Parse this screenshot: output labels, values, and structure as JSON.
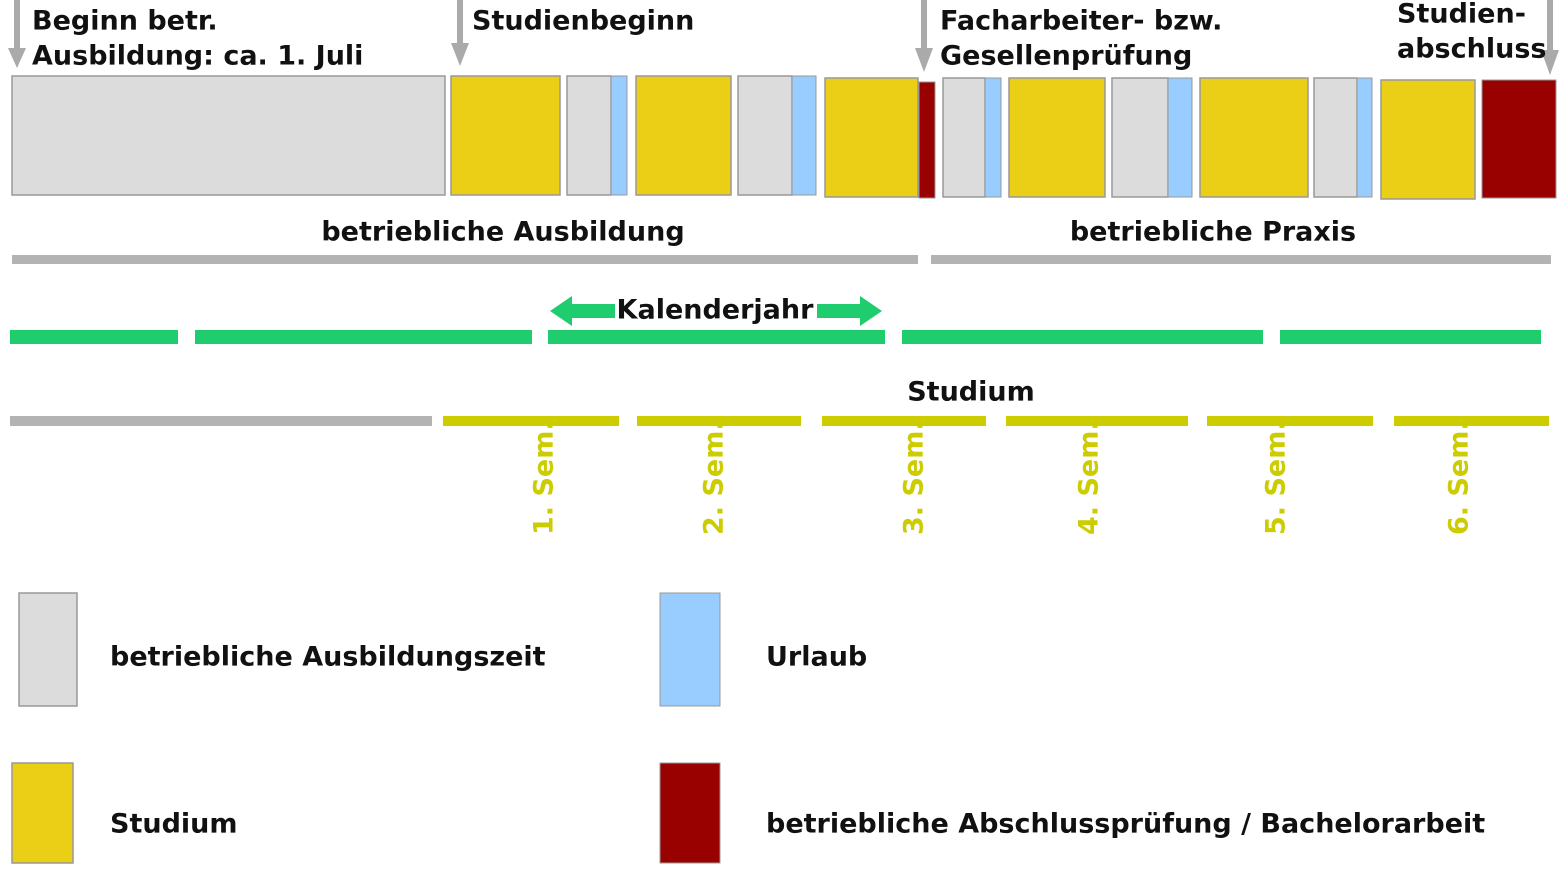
{
  "milestones": [
    {
      "lines": [
        "Beginn betr.",
        "Ausbildung: ca. 1. Juli"
      ]
    },
    {
      "lines": [
        "Studienbeginn"
      ]
    },
    {
      "lines": [
        "Facharbeiter- bzw.",
        "Gesellenprüfung"
      ]
    },
    {
      "lines": [
        "Studien-",
        "abschluss"
      ]
    }
  ],
  "phases": [
    "betriebliche Ausbildung",
    "betriebliche Praxis"
  ],
  "calendar_label": "Kalenderjahr",
  "study_label": "Studium",
  "semesters": [
    "1. Sem.",
    "2. Sem.",
    "3. Sem.",
    "4. Sem.",
    "5. Sem.",
    "6. Sem."
  ],
  "legend": [
    {
      "label": "betriebliche Ausbildungszeit"
    },
    {
      "label": "Urlaub"
    },
    {
      "label": "Studium"
    },
    {
      "label": "betriebliche Abschlussprüfung / Bachelorarbeit"
    }
  ]
}
